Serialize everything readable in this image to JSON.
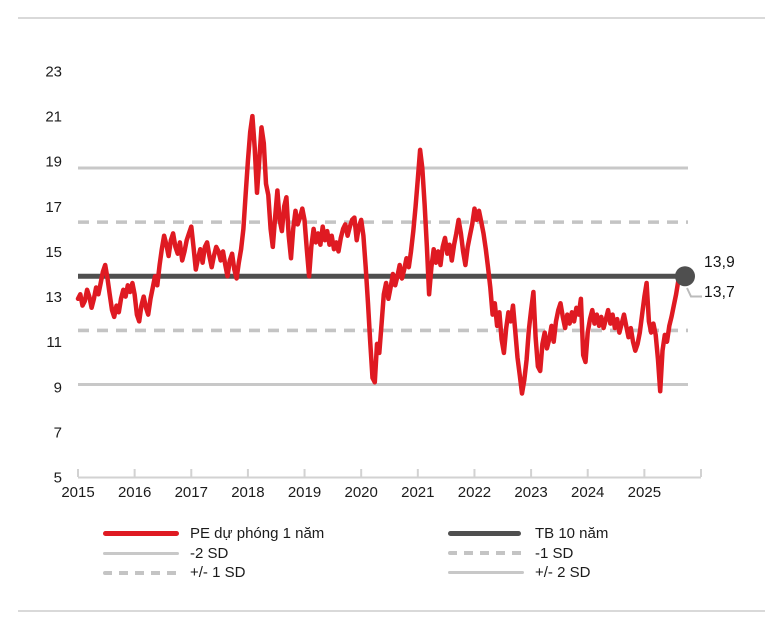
{
  "colors": {
    "pe_red": "#df1a22",
    "tb_dark": "#4f4f4f",
    "sd_light_solid": "#c8c8c8",
    "sd_dashed": "#c4c4c4",
    "axis_line": "#d2d2d2",
    "text": "#1b1b1b",
    "divider": "#d9d9d9"
  },
  "chart_data": {
    "type": "line",
    "title": "",
    "xlabel": "",
    "ylabel": "",
    "xlim": [
      2015,
      2026
    ],
    "ylim": [
      5,
      23
    ],
    "grid": "horizontal reference lines only",
    "x_ticks": [
      "2015",
      "2016",
      "2017",
      "2018",
      "2019",
      "2020",
      "2021",
      "2022",
      "2023",
      "2024",
      "2025"
    ],
    "y_ticks": [
      23,
      21,
      19,
      17,
      15,
      13,
      11,
      9,
      7,
      5
    ],
    "reference_lines": [
      {
        "name": "+2 SD",
        "value": 18.7,
        "style": "solid-light"
      },
      {
        "name": "+1 SD",
        "value": 16.3,
        "style": "dashed"
      },
      {
        "name": "TB 10 năm",
        "value": 13.9,
        "style": "solid-dark",
        "end_marker": true
      },
      {
        "name": "-1 SD",
        "value": 11.5,
        "style": "dashed"
      },
      {
        "name": "-2 SD",
        "value": 9.1,
        "style": "solid-light"
      }
    ],
    "end_labels": [
      {
        "text": "13,9",
        "series": "TB 10 năm",
        "value": 13.9
      },
      {
        "text": "13,7",
        "series": "PE dự phóng 1 năm",
        "value": 13.7
      }
    ],
    "legend": {
      "position": "bottom",
      "columns": [
        [
          {
            "label": "PE dự phóng 1 năm",
            "swatch": "pe"
          },
          {
            "label": "-2 SD",
            "swatch": "sd-solid"
          },
          {
            "label": "+/- 1 SD",
            "swatch": "sd-dashed"
          }
        ],
        [
          {
            "label": "TB 10 năm",
            "swatch": "tb"
          },
          {
            "label": "-1 SD",
            "swatch": "sd-dashed"
          },
          {
            "label": "+/- 2 SD",
            "swatch": "sd-solid"
          }
        ]
      ]
    },
    "series": [
      {
        "name": "PE dự phóng 1 năm",
        "style": "solid",
        "last_value": 13.7,
        "points": [
          [
            2015.0,
            12.9
          ],
          [
            2015.04,
            13.1
          ],
          [
            2015.08,
            12.6
          ],
          [
            2015.12,
            12.8
          ],
          [
            2015.16,
            13.3
          ],
          [
            2015.2,
            13.0
          ],
          [
            2015.24,
            12.5
          ],
          [
            2015.28,
            12.9
          ],
          [
            2015.32,
            13.4
          ],
          [
            2015.36,
            13.1
          ],
          [
            2015.4,
            13.6
          ],
          [
            2015.44,
            14.1
          ],
          [
            2015.48,
            14.4
          ],
          [
            2015.52,
            13.8
          ],
          [
            2015.56,
            13.1
          ],
          [
            2015.6,
            12.4
          ],
          [
            2015.64,
            12.1
          ],
          [
            2015.68,
            12.6
          ],
          [
            2015.72,
            12.3
          ],
          [
            2015.76,
            12.9
          ],
          [
            2015.8,
            13.3
          ],
          [
            2015.84,
            13.0
          ],
          [
            2015.88,
            13.5
          ],
          [
            2015.92,
            13.2
          ],
          [
            2015.96,
            13.6
          ],
          [
            2016.0,
            13.1
          ],
          [
            2016.04,
            12.2
          ],
          [
            2016.08,
            11.9
          ],
          [
            2016.12,
            12.6
          ],
          [
            2016.16,
            13.0
          ],
          [
            2016.2,
            12.5
          ],
          [
            2016.24,
            12.2
          ],
          [
            2016.28,
            12.9
          ],
          [
            2016.32,
            13.4
          ],
          [
            2016.36,
            13.9
          ],
          [
            2016.4,
            13.5
          ],
          [
            2016.44,
            14.4
          ],
          [
            2016.48,
            15.1
          ],
          [
            2016.52,
            15.7
          ],
          [
            2016.56,
            15.3
          ],
          [
            2016.6,
            14.8
          ],
          [
            2016.64,
            15.5
          ],
          [
            2016.68,
            15.8
          ],
          [
            2016.72,
            15.2
          ],
          [
            2016.76,
            14.9
          ],
          [
            2016.8,
            15.4
          ],
          [
            2016.84,
            14.6
          ],
          [
            2016.88,
            15.0
          ],
          [
            2016.92,
            15.5
          ],
          [
            2016.96,
            15.8
          ],
          [
            2017.0,
            16.1
          ],
          [
            2017.04,
            15.2
          ],
          [
            2017.08,
            14.2
          ],
          [
            2017.12,
            14.7
          ],
          [
            2017.16,
            15.1
          ],
          [
            2017.2,
            14.5
          ],
          [
            2017.24,
            15.2
          ],
          [
            2017.28,
            15.4
          ],
          [
            2017.32,
            14.8
          ],
          [
            2017.36,
            14.3
          ],
          [
            2017.4,
            14.8
          ],
          [
            2017.44,
            15.2
          ],
          [
            2017.48,
            15.0
          ],
          [
            2017.52,
            14.6
          ],
          [
            2017.56,
            15.0
          ],
          [
            2017.6,
            14.4
          ],
          [
            2017.64,
            13.9
          ],
          [
            2017.68,
            14.6
          ],
          [
            2017.72,
            14.9
          ],
          [
            2017.76,
            14.2
          ],
          [
            2017.8,
            13.8
          ],
          [
            2017.84,
            14.5
          ],
          [
            2017.88,
            15.1
          ],
          [
            2017.92,
            16.0
          ],
          [
            2017.96,
            17.5
          ],
          [
            2018.0,
            19.0
          ],
          [
            2018.04,
            20.3
          ],
          [
            2018.08,
            21.0
          ],
          [
            2018.12,
            19.6
          ],
          [
            2018.16,
            17.6
          ],
          [
            2018.2,
            19.0
          ],
          [
            2018.24,
            20.5
          ],
          [
            2018.28,
            19.8
          ],
          [
            2018.32,
            18.0
          ],
          [
            2018.36,
            17.5
          ],
          [
            2018.4,
            16.0
          ],
          [
            2018.44,
            15.2
          ],
          [
            2018.48,
            16.5
          ],
          [
            2018.52,
            17.7
          ],
          [
            2018.56,
            16.4
          ],
          [
            2018.6,
            15.9
          ],
          [
            2018.64,
            17.0
          ],
          [
            2018.68,
            17.4
          ],
          [
            2018.72,
            15.7
          ],
          [
            2018.76,
            14.7
          ],
          [
            2018.8,
            16.0
          ],
          [
            2018.84,
            16.8
          ],
          [
            2018.88,
            16.2
          ],
          [
            2018.92,
            16.5
          ],
          [
            2018.96,
            16.9
          ],
          [
            2019.0,
            16.4
          ],
          [
            2019.04,
            15.1
          ],
          [
            2019.08,
            13.9
          ],
          [
            2019.12,
            15.2
          ],
          [
            2019.16,
            16.0
          ],
          [
            2019.2,
            15.4
          ],
          [
            2019.24,
            15.8
          ],
          [
            2019.28,
            15.3
          ],
          [
            2019.32,
            16.1
          ],
          [
            2019.36,
            15.5
          ],
          [
            2019.4,
            15.9
          ],
          [
            2019.44,
            15.3
          ],
          [
            2019.48,
            15.7
          ],
          [
            2019.52,
            15.1
          ],
          [
            2019.56,
            15.4
          ],
          [
            2019.6,
            15.0
          ],
          [
            2019.64,
            15.6
          ],
          [
            2019.68,
            16.0
          ],
          [
            2019.72,
            16.2
          ],
          [
            2019.76,
            15.7
          ],
          [
            2019.8,
            16.1
          ],
          [
            2019.84,
            16.4
          ],
          [
            2019.88,
            16.5
          ],
          [
            2019.92,
            15.5
          ],
          [
            2019.96,
            16.1
          ],
          [
            2020.0,
            16.4
          ],
          [
            2020.04,
            15.7
          ],
          [
            2020.08,
            14.3
          ],
          [
            2020.12,
            12.7
          ],
          [
            2020.16,
            11.0
          ],
          [
            2020.2,
            9.4
          ],
          [
            2020.24,
            9.2
          ],
          [
            2020.28,
            10.9
          ],
          [
            2020.32,
            10.5
          ],
          [
            2020.36,
            11.8
          ],
          [
            2020.4,
            13.1
          ],
          [
            2020.44,
            13.6
          ],
          [
            2020.48,
            12.9
          ],
          [
            2020.52,
            13.4
          ],
          [
            2020.56,
            14.0
          ],
          [
            2020.6,
            13.5
          ],
          [
            2020.64,
            13.9
          ],
          [
            2020.68,
            14.4
          ],
          [
            2020.72,
            13.8
          ],
          [
            2020.76,
            14.2
          ],
          [
            2020.8,
            14.7
          ],
          [
            2020.84,
            14.3
          ],
          [
            2020.88,
            15.0
          ],
          [
            2020.92,
            15.9
          ],
          [
            2020.96,
            17.0
          ],
          [
            2021.0,
            18.2
          ],
          [
            2021.04,
            19.5
          ],
          [
            2021.08,
            18.7
          ],
          [
            2021.12,
            17.1
          ],
          [
            2021.16,
            15.2
          ],
          [
            2021.2,
            13.1
          ],
          [
            2021.24,
            14.3
          ],
          [
            2021.28,
            15.1
          ],
          [
            2021.32,
            14.5
          ],
          [
            2021.36,
            15.0
          ],
          [
            2021.4,
            14.4
          ],
          [
            2021.44,
            15.2
          ],
          [
            2021.48,
            15.6
          ],
          [
            2021.52,
            14.9
          ],
          [
            2021.56,
            15.3
          ],
          [
            2021.6,
            14.6
          ],
          [
            2021.64,
            15.3
          ],
          [
            2021.68,
            15.8
          ],
          [
            2021.72,
            16.4
          ],
          [
            2021.76,
            15.8
          ],
          [
            2021.8,
            15.0
          ],
          [
            2021.84,
            14.4
          ],
          [
            2021.88,
            15.2
          ],
          [
            2021.92,
            15.7
          ],
          [
            2021.96,
            16.2
          ],
          [
            2022.0,
            16.9
          ],
          [
            2022.04,
            16.4
          ],
          [
            2022.08,
            16.8
          ],
          [
            2022.12,
            16.3
          ],
          [
            2022.16,
            15.8
          ],
          [
            2022.2,
            15.1
          ],
          [
            2022.24,
            14.3
          ],
          [
            2022.28,
            13.4
          ],
          [
            2022.32,
            12.2
          ],
          [
            2022.36,
            12.7
          ],
          [
            2022.4,
            11.7
          ],
          [
            2022.44,
            12.3
          ],
          [
            2022.48,
            11.1
          ],
          [
            2022.52,
            10.5
          ],
          [
            2022.56,
            11.6
          ],
          [
            2022.6,
            12.3
          ],
          [
            2022.64,
            11.9
          ],
          [
            2022.68,
            12.6
          ],
          [
            2022.72,
            11.5
          ],
          [
            2022.76,
            10.3
          ],
          [
            2022.8,
            9.5
          ],
          [
            2022.84,
            8.7
          ],
          [
            2022.88,
            9.3
          ],
          [
            2022.92,
            10.2
          ],
          [
            2022.96,
            11.5
          ],
          [
            2023.0,
            12.4
          ],
          [
            2023.04,
            13.2
          ],
          [
            2023.08,
            11.2
          ],
          [
            2023.12,
            9.9
          ],
          [
            2023.16,
            9.7
          ],
          [
            2023.2,
            10.9
          ],
          [
            2023.24,
            11.4
          ],
          [
            2023.28,
            10.7
          ],
          [
            2023.32,
            11.1
          ],
          [
            2023.36,
            11.7
          ],
          [
            2023.4,
            11.0
          ],
          [
            2023.44,
            11.9
          ],
          [
            2023.48,
            12.4
          ],
          [
            2023.52,
            12.7
          ],
          [
            2023.56,
            12.1
          ],
          [
            2023.6,
            11.6
          ],
          [
            2023.64,
            12.2
          ],
          [
            2023.68,
            11.8
          ],
          [
            2023.72,
            12.3
          ],
          [
            2023.76,
            11.9
          ],
          [
            2023.8,
            12.5
          ],
          [
            2023.84,
            12.2
          ],
          [
            2023.88,
            12.9
          ],
          [
            2023.92,
            10.4
          ],
          [
            2023.96,
            10.1
          ],
          [
            2024.0,
            11.4
          ],
          [
            2024.04,
            12.0
          ],
          [
            2024.08,
            12.4
          ],
          [
            2024.12,
            11.8
          ],
          [
            2024.16,
            12.2
          ],
          [
            2024.2,
            11.7
          ],
          [
            2024.24,
            12.1
          ],
          [
            2024.28,
            11.6
          ],
          [
            2024.32,
            12.0
          ],
          [
            2024.36,
            12.4
          ],
          [
            2024.4,
            11.8
          ],
          [
            2024.44,
            12.2
          ],
          [
            2024.48,
            11.6
          ],
          [
            2024.52,
            12.0
          ],
          [
            2024.56,
            11.4
          ],
          [
            2024.6,
            11.8
          ],
          [
            2024.64,
            12.2
          ],
          [
            2024.68,
            11.7
          ],
          [
            2024.72,
            11.2
          ],
          [
            2024.76,
            11.6
          ],
          [
            2024.8,
            11.0
          ],
          [
            2024.84,
            10.6
          ],
          [
            2024.88,
            10.9
          ],
          [
            2024.92,
            11.4
          ],
          [
            2024.96,
            12.2
          ],
          [
            2025.0,
            13.0
          ],
          [
            2025.04,
            13.6
          ],
          [
            2025.08,
            11.9
          ],
          [
            2025.12,
            11.4
          ],
          [
            2025.16,
            11.8
          ],
          [
            2025.2,
            11.3
          ],
          [
            2025.24,
            10.2
          ],
          [
            2025.28,
            8.8
          ],
          [
            2025.32,
            10.6
          ],
          [
            2025.36,
            11.3
          ],
          [
            2025.4,
            11.0
          ],
          [
            2025.44,
            11.7
          ],
          [
            2025.48,
            12.1
          ],
          [
            2025.52,
            12.6
          ],
          [
            2025.56,
            13.1
          ],
          [
            2025.6,
            13.7
          ],
          [
            2025.64,
            14.0
          ],
          [
            2025.68,
            13.6
          ],
          [
            2025.72,
            13.7
          ]
        ]
      }
    ]
  }
}
